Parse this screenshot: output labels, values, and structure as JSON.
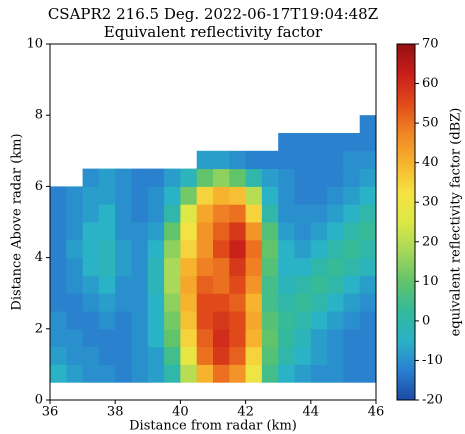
{
  "chart_data": {
    "type": "heatmap",
    "title": "CSAPR2 216.5 Deg. 2022-06-17T19:04:48Z",
    "subtitle": "Equivalent reflectivity factor",
    "x_label": "Distance from radar (km)",
    "y_label": "Distance Above radar  (km)",
    "colorbar_label": "equivalent reflectivity factor (dBZ)",
    "xlim": [
      36,
      46
    ],
    "xticks": [
      36,
      38,
      40,
      42,
      44,
      46
    ],
    "ylim": [
      0,
      10
    ],
    "yticks": [
      0,
      2,
      4,
      6,
      8,
      10
    ],
    "clim": [
      -20,
      70
    ],
    "cticks": [
      -20,
      -10,
      0,
      10,
      20,
      30,
      40,
      50,
      60,
      70
    ],
    "colormap": [
      "#1c4aa5",
      "#2a7fd0",
      "#2ab2c6",
      "#33b99a",
      "#62c46a",
      "#a6d75a",
      "#dde846",
      "#f6e243",
      "#f7b32e",
      "#f08424",
      "#e04a1a",
      "#c81e1a",
      "#951010"
    ],
    "xbins": [
      36,
      36.5,
      37,
      37.5,
      38,
      38.5,
      39,
      39.5,
      40,
      40.5,
      41,
      41.5,
      42,
      42.5,
      43,
      43.5,
      44,
      44.5,
      45,
      45.5,
      46
    ],
    "ybins": [
      0.5,
      1,
      1.5,
      2,
      2.5,
      3,
      3.5,
      4,
      4.5,
      5,
      5.5,
      6,
      6.5,
      7,
      7.5,
      8
    ],
    "values": [
      [
        -5,
        -8,
        -10,
        -10,
        -12,
        -10,
        -8,
        0,
        20,
        40,
        50,
        45,
        30,
        5,
        -5,
        -8,
        -10,
        -10,
        -12,
        -12
      ],
      [
        -8,
        -10,
        -10,
        -12,
        -12,
        -10,
        -8,
        5,
        28,
        50,
        58,
        52,
        35,
        8,
        0,
        -5,
        -8,
        -10,
        -12,
        -12
      ],
      [
        -10,
        -10,
        -12,
        -12,
        -12,
        -10,
        -5,
        10,
        35,
        52,
        60,
        55,
        40,
        10,
        2,
        -3,
        -8,
        -10,
        -12,
        -12
      ],
      [
        -10,
        -12,
        -12,
        -10,
        -12,
        -10,
        -5,
        12,
        38,
        55,
        58,
        55,
        42,
        8,
        3,
        0,
        -5,
        -8,
        -10,
        -12
      ],
      [
        -12,
        -12,
        -10,
        -8,
        -10,
        -10,
        -5,
        15,
        40,
        55,
        55,
        52,
        40,
        5,
        0,
        3,
        0,
        -5,
        -8,
        -10
      ],
      [
        -12,
        -10,
        -8,
        -5,
        -10,
        -10,
        -3,
        18,
        42,
        52,
        50,
        55,
        45,
        5,
        -3,
        0,
        3,
        0,
        -5,
        -8
      ],
      [
        -12,
        -10,
        -5,
        -3,
        -8,
        -10,
        -3,
        18,
        40,
        48,
        50,
        58,
        48,
        8,
        -5,
        -5,
        0,
        3,
        0,
        -3
      ],
      [
        -12,
        -8,
        -5,
        -3,
        -8,
        -10,
        -5,
        15,
        35,
        45,
        55,
        62,
        50,
        10,
        -5,
        -8,
        -5,
        0,
        3,
        0
      ],
      [
        -12,
        -10,
        -5,
        -5,
        -10,
        -10,
        -8,
        10,
        32,
        45,
        52,
        58,
        45,
        8,
        -8,
        -10,
        -8,
        -5,
        0,
        3
      ],
      [
        -12,
        -10,
        -8,
        -5,
        -10,
        -12,
        -10,
        0,
        25,
        42,
        48,
        50,
        35,
        0,
        -10,
        -10,
        -10,
        -8,
        -5,
        0
      ],
      [
        -12,
        -10,
        -8,
        -8,
        -10,
        -12,
        -10,
        -5,
        12,
        35,
        40,
        38,
        20,
        -5,
        -10,
        -12,
        -12,
        -10,
        -8,
        -5
      ],
      [
        null,
        null,
        -10,
        -8,
        -10,
        -12,
        -12,
        -8,
        -3,
        10,
        15,
        10,
        0,
        -8,
        -10,
        -12,
        -12,
        -12,
        -10,
        -8
      ],
      [
        null,
        null,
        null,
        null,
        null,
        null,
        null,
        null,
        null,
        -8,
        -8,
        -10,
        -12,
        -12,
        -12,
        -12,
        -12,
        -12,
        -10,
        -10
      ],
      [
        null,
        null,
        null,
        null,
        null,
        null,
        null,
        null,
        null,
        null,
        null,
        null,
        null,
        null,
        -12,
        -12,
        -12,
        -12,
        -12,
        -12
      ],
      [
        null,
        null,
        null,
        null,
        null,
        null,
        null,
        null,
        null,
        null,
        null,
        null,
        null,
        null,
        null,
        null,
        null,
        null,
        null,
        -12
      ]
    ]
  }
}
